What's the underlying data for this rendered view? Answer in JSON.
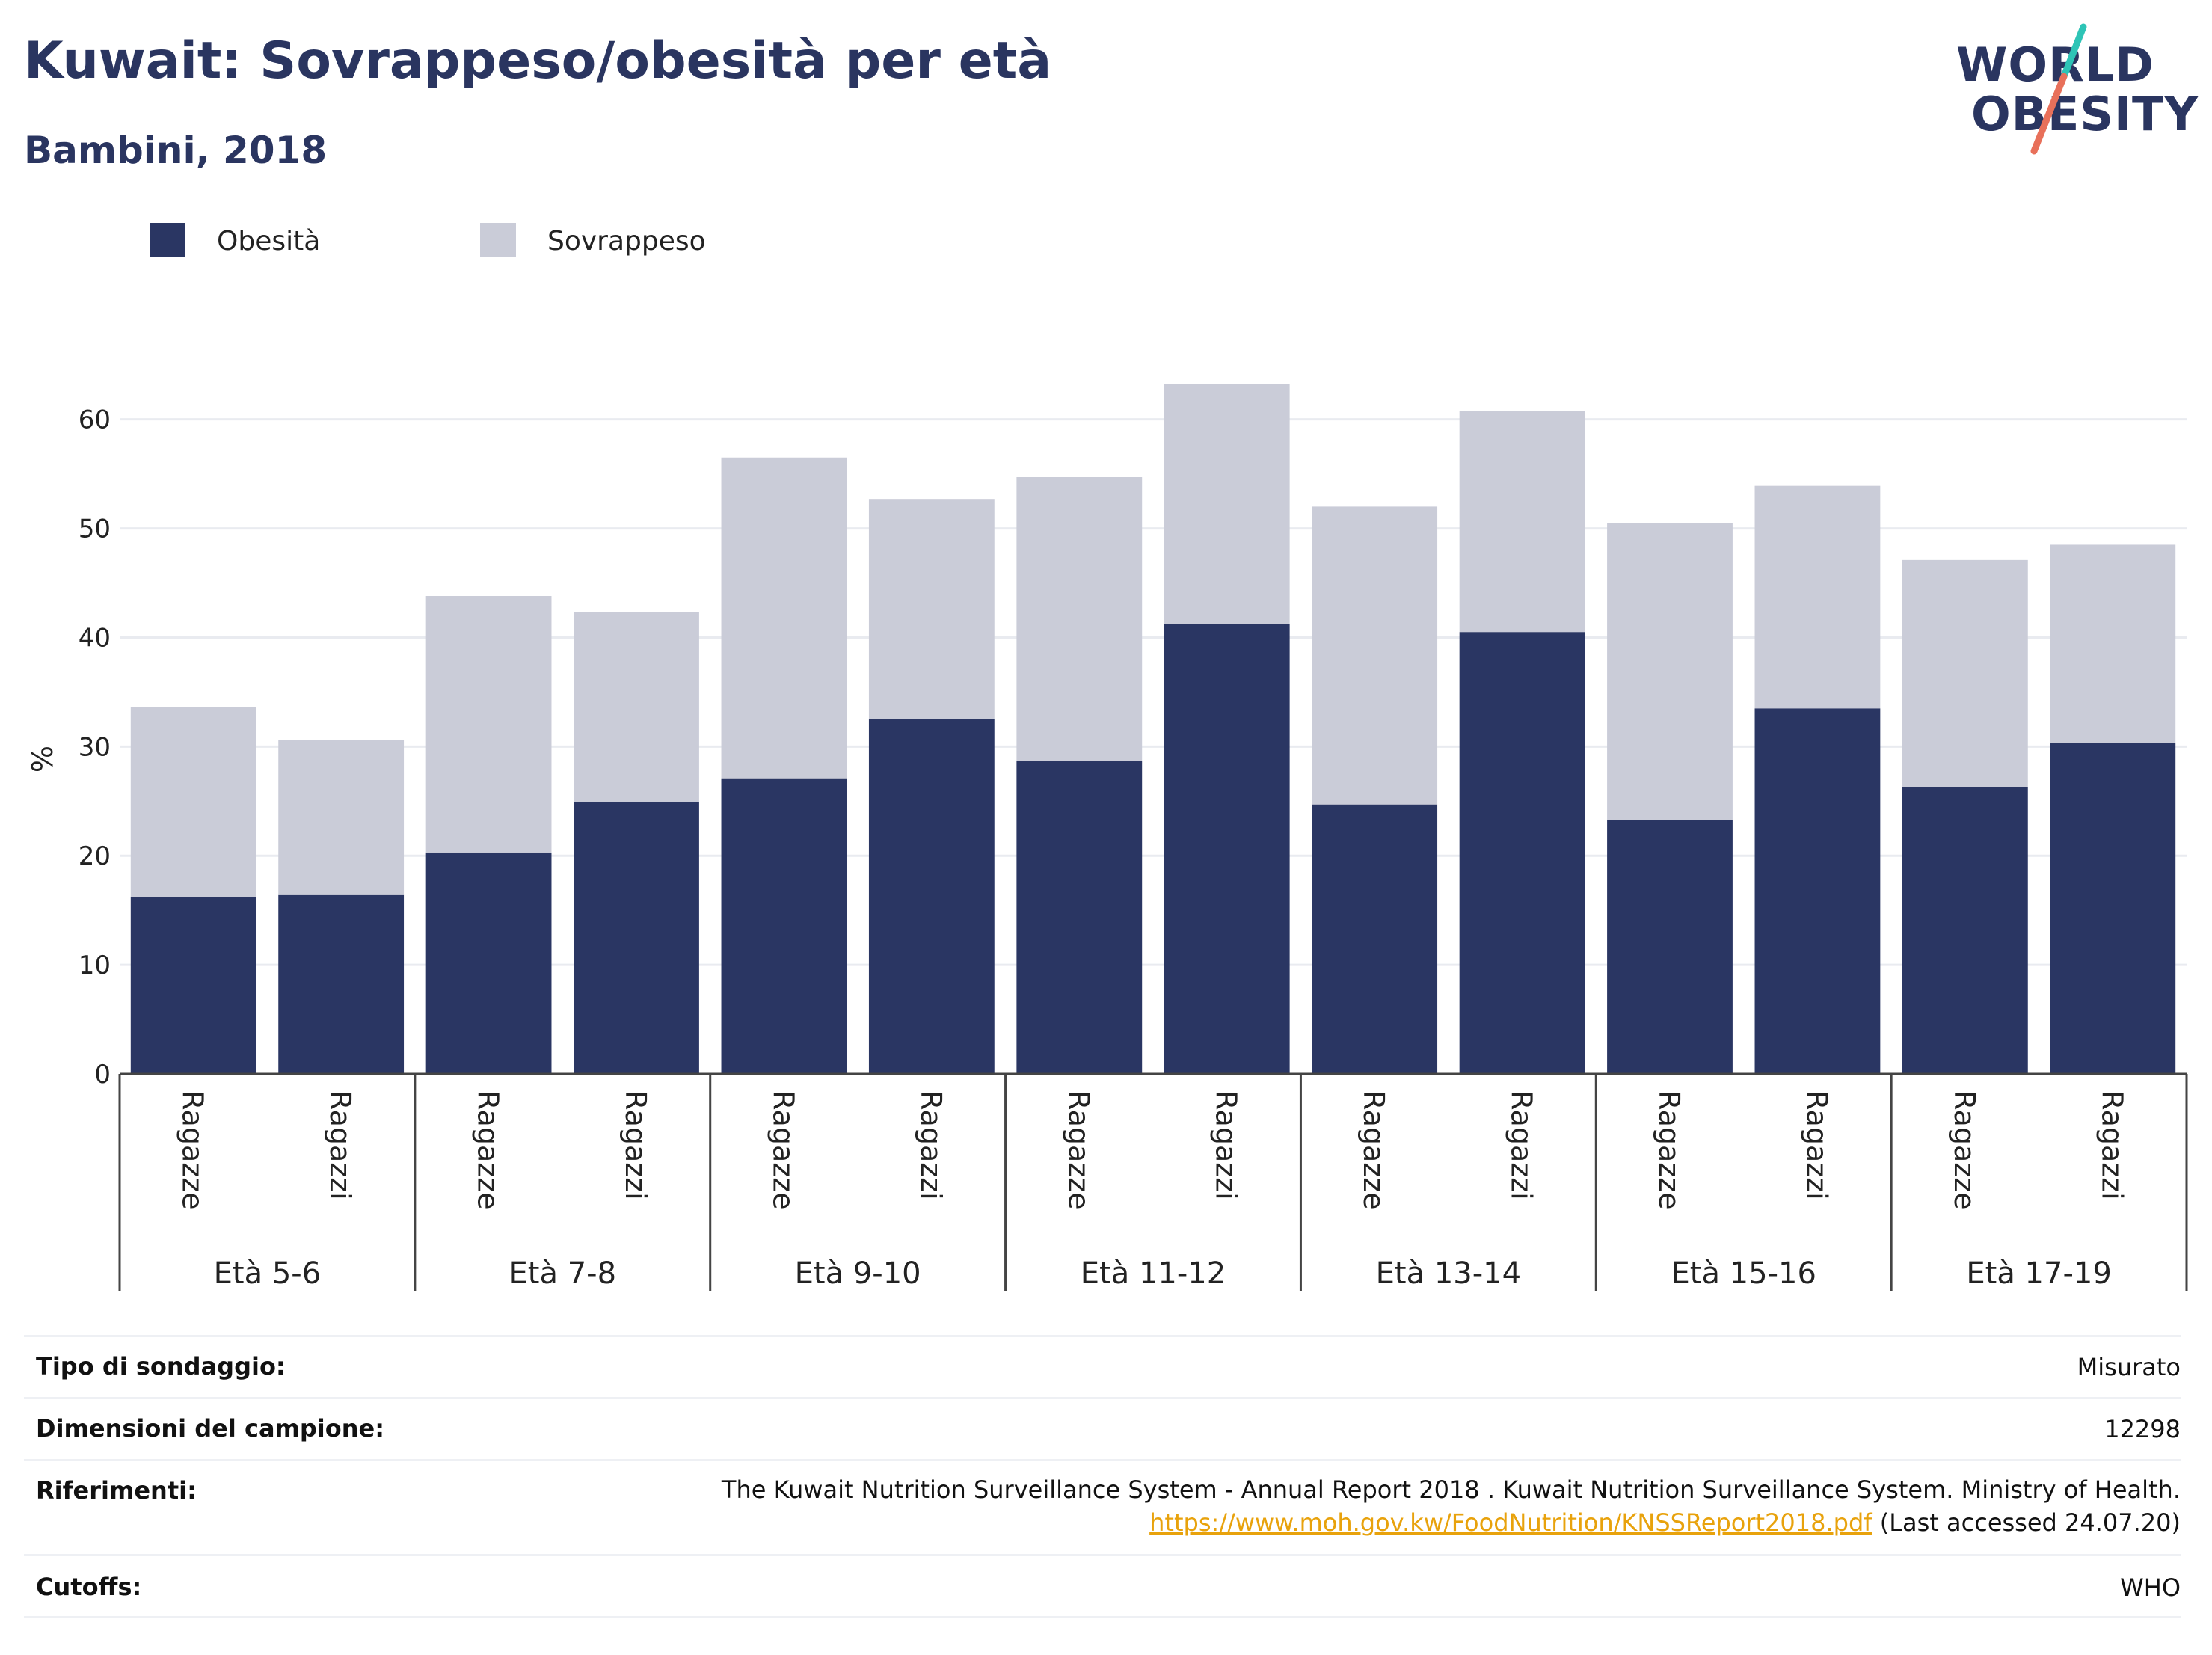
{
  "header": {
    "title": "Kuwait: Sovrappeso/obesità per età",
    "subtitle": "Bambini, 2018"
  },
  "logo": {
    "line1": "WORLD",
    "line2": "OBESITY",
    "accent_colors": [
      "#2ec4b6",
      "#e8705a"
    ]
  },
  "colors": {
    "obesity": "#2a3663",
    "overweight": "#caccd8",
    "grid": "#e9ebf0",
    "title": "#2a3560",
    "link": "#e8a20c"
  },
  "chart_data": {
    "type": "bar",
    "stacked": true,
    "title": "Kuwait: Sovrappeso/obesità per età",
    "subtitle": "Bambini, 2018",
    "ylabel": "%",
    "ylim": [
      0,
      63.2
    ],
    "yticks": [
      0,
      10,
      20,
      30,
      40,
      50,
      60
    ],
    "grid": true,
    "legend_position": "top-left",
    "groups": [
      "Età 5-6",
      "Età 7-8",
      "Età 9-10",
      "Età 11-12",
      "Età 13-14",
      "Età 15-16",
      "Età 17-19"
    ],
    "categories": [
      "Ragazze",
      "Ragazzi",
      "Ragazze",
      "Ragazzi",
      "Ragazze",
      "Ragazzi",
      "Ragazze",
      "Ragazzi",
      "Ragazze",
      "Ragazzi",
      "Ragazze",
      "Ragazzi",
      "Ragazze",
      "Ragazzi"
    ],
    "series": [
      {
        "name": "Obesità",
        "color": "#2a3663",
        "values": [
          16.2,
          16.4,
          20.3,
          24.9,
          27.1,
          32.5,
          28.7,
          41.2,
          24.7,
          40.5,
          23.3,
          33.5,
          26.3,
          30.3
        ]
      },
      {
        "name": "Sovrappeso",
        "color": "#caccd8",
        "values": [
          17.4,
          14.2,
          23.5,
          17.4,
          29.4,
          20.2,
          26.0,
          22.0,
          27.3,
          20.3,
          27.2,
          20.4,
          20.8,
          18.2
        ]
      }
    ]
  },
  "info": {
    "survey_type_label": "Tipo di sondaggio:",
    "survey_type_value": "Misurato",
    "sample_size_label": "Dimensioni del campione:",
    "sample_size_value": "12298",
    "references_label": "Riferimenti:",
    "references_text": "The Kuwait Nutrition Surveillance System - Annual Report 2018 . Kuwait Nutrition Surveillance System. Ministry of Health.",
    "references_link": "https://www.moh.gov.kw/FoodNutrition/KNSSReport2018.pdf",
    "references_accessed": " (Last accessed 24.07.20)",
    "cutoffs_label": "Cutoffs:",
    "cutoffs_value": "WHO"
  }
}
